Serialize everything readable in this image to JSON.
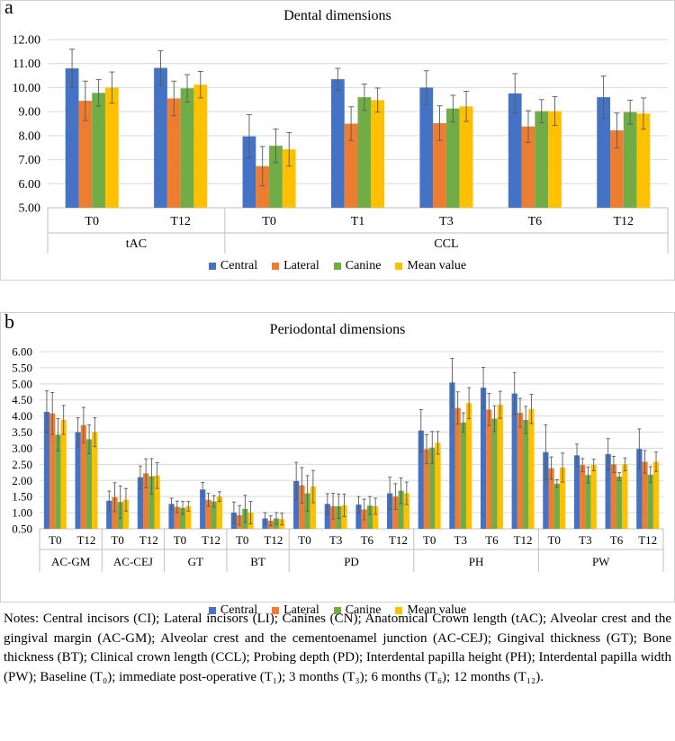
{
  "panel_a": {
    "letter": "a",
    "chart_data": {
      "type": "bar",
      "title": "Dental dimensions",
      "ylim": [
        5,
        12
      ],
      "ytick_step": 1,
      "ytick_decimals": 2,
      "groups": [
        {
          "name": "tAC",
          "categories": [
            "T0",
            "T12"
          ]
        },
        {
          "name": "CCL",
          "categories": [
            "T0",
            "T1",
            "T3",
            "T6",
            "T12"
          ]
        }
      ],
      "series": [
        {
          "name": "Central",
          "color": "#4472C4",
          "values": [
            10.8,
            10.82,
            7.97,
            10.35,
            10.0,
            9.76,
            9.6
          ],
          "errors": [
            0.8,
            0.72,
            0.9,
            0.45,
            0.7,
            0.82,
            0.88
          ]
        },
        {
          "name": "Lateral",
          "color": "#ED7D31",
          "values": [
            9.45,
            9.55,
            6.73,
            8.5,
            8.52,
            8.38,
            8.22
          ],
          "errors": [
            0.82,
            0.72,
            0.82,
            0.7,
            0.72,
            0.66,
            0.72
          ]
        },
        {
          "name": "Canine",
          "color": "#70AD47",
          "values": [
            9.78,
            9.97,
            7.58,
            9.6,
            9.13,
            9.02,
            8.98
          ],
          "errors": [
            0.55,
            0.57,
            0.7,
            0.55,
            0.55,
            0.48,
            0.5
          ]
        },
        {
          "name": "Mean value",
          "color": "#FFC000",
          "values": [
            10.0,
            10.12,
            7.43,
            9.48,
            9.22,
            9.02,
            8.92
          ],
          "errors": [
            0.65,
            0.55,
            0.7,
            0.5,
            0.63,
            0.6,
            0.65
          ]
        }
      ]
    }
  },
  "panel_b": {
    "letter": "b",
    "chart_data": {
      "type": "bar",
      "title": "Periodontal dimensions",
      "ylim": [
        0.5,
        6.0
      ],
      "ytick_step": 0.5,
      "ytick_decimals": 2,
      "groups": [
        {
          "name": "AC-GM",
          "categories": [
            "T0",
            "T12"
          ]
        },
        {
          "name": "AC-CEJ",
          "categories": [
            "T0",
            "T12"
          ]
        },
        {
          "name": "GT",
          "categories": [
            "T0",
            "T12"
          ]
        },
        {
          "name": "BT",
          "categories": [
            "T0",
            "T12"
          ]
        },
        {
          "name": "PD",
          "categories": [
            "T0",
            "T3",
            "T6",
            "T12"
          ]
        },
        {
          "name": "PH",
          "categories": [
            "T0",
            "T3",
            "T6",
            "T12"
          ]
        },
        {
          "name": "PW",
          "categories": [
            "T0",
            "T3",
            "T6",
            "T12"
          ]
        }
      ],
      "series": [
        {
          "name": "Central",
          "color": "#4472C4",
          "values": [
            4.13,
            3.5,
            1.37,
            2.1,
            1.27,
            1.72,
            1.0,
            0.82,
            1.98,
            1.27,
            1.25,
            1.6,
            3.55,
            5.04,
            4.88,
            4.7,
            2.88,
            2.78,
            2.82,
            2.98
          ],
          "errors": [
            0.65,
            0.45,
            0.3,
            0.35,
            0.18,
            0.22,
            0.33,
            0.18,
            0.58,
            0.32,
            0.25,
            0.5,
            0.65,
            0.75,
            0.63,
            0.65,
            0.85,
            0.35,
            0.48,
            0.62
          ]
        },
        {
          "name": "Lateral",
          "color": "#ED7D31",
          "values": [
            4.08,
            3.72,
            1.48,
            2.22,
            1.18,
            1.4,
            0.92,
            0.75,
            1.85,
            1.2,
            1.1,
            1.5,
            2.97,
            4.25,
            4.2,
            4.1,
            2.38,
            2.48,
            2.5,
            2.58
          ],
          "errors": [
            0.65,
            0.55,
            0.45,
            0.45,
            0.18,
            0.2,
            0.3,
            0.15,
            0.55,
            0.4,
            0.32,
            0.4,
            0.45,
            0.5,
            0.5,
            0.45,
            0.35,
            0.2,
            0.25,
            0.35
          ]
        },
        {
          "name": "Canine",
          "color": "#70AD47",
          "values": [
            3.42,
            3.28,
            1.33,
            2.13,
            1.15,
            1.35,
            1.12,
            0.82,
            1.6,
            1.2,
            1.22,
            1.68,
            3.02,
            3.8,
            3.92,
            3.88,
            1.9,
            2.17,
            2.12,
            2.18
          ],
          "errors": [
            0.5,
            0.45,
            0.5,
            0.55,
            0.2,
            0.18,
            0.42,
            0.18,
            0.55,
            0.38,
            0.28,
            0.4,
            0.5,
            0.3,
            0.4,
            0.42,
            0.12,
            0.25,
            0.12,
            0.25
          ]
        },
        {
          "name": "Mean value",
          "color": "#FFC000",
          "values": [
            3.88,
            3.5,
            1.4,
            2.15,
            1.2,
            1.5,
            1.0,
            0.8,
            1.81,
            1.23,
            1.2,
            1.6,
            3.17,
            4.4,
            4.35,
            4.22,
            2.4,
            2.48,
            2.5,
            2.58
          ],
          "errors": [
            0.45,
            0.45,
            0.35,
            0.4,
            0.15,
            0.15,
            0.35,
            0.18,
            0.5,
            0.35,
            0.25,
            0.35,
            0.35,
            0.48,
            0.42,
            0.45,
            0.45,
            0.18,
            0.2,
            0.3
          ]
        }
      ]
    }
  },
  "notes": "Notes: Central incisors (CI); Lateral incisors (LI); Canines (CN); Anatomical Crown length (tAC); Alveolar crest and the gingival margin (AC-GM); Alveolar crest and the cementoenamel junction (AC-CEJ); Gingival thickness (GT); Bone thickness (BT); Clinical crown length (CCL); Probing depth (PD); Interdental papilla height (PH); Interdental papilla width (PW); Baseline (T₀); immediate post-operative (T₁); 3 months (T₃); 6 months (T₆); 12 months (T₁₂)."
}
